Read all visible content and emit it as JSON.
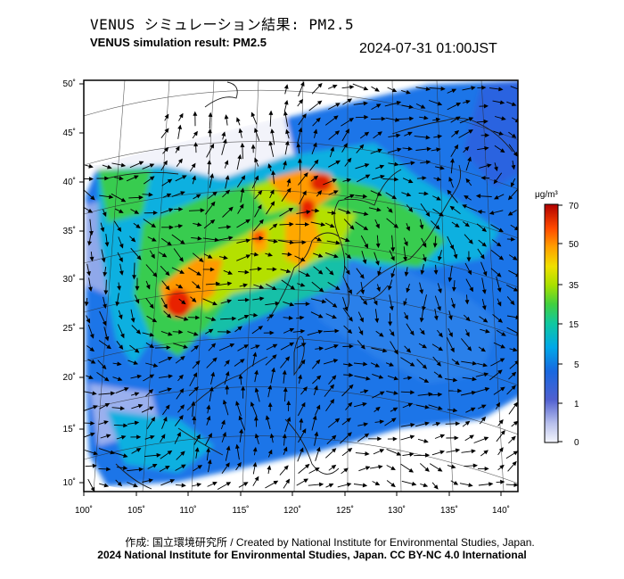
{
  "header": {
    "title_jp": "VENUS シミュレーション結果: PM2.5",
    "title_en": "VENUS simulation result: PM2.5",
    "timestamp": "2024-07-31 01:00JST"
  },
  "map": {
    "longitude_ticks": [
      "100˚",
      "105˚",
      "110˚",
      "115˚",
      "120˚",
      "125˚",
      "130˚",
      "135˚",
      "140˚"
    ],
    "latitude_ticks": [
      "50˚",
      "45˚",
      "40˚",
      "35˚",
      "30˚",
      "25˚",
      "20˚",
      "15˚",
      "10˚"
    ],
    "variable": "PM2.5",
    "has_wind_vectors": true
  },
  "colorbar": {
    "unit": "μg/m³",
    "labels": [
      "70",
      "50",
      "35",
      "15",
      "5",
      "1",
      "0"
    ],
    "colors": [
      "#b40000",
      "#ff3000",
      "#ff9a00",
      "#e8e000",
      "#6cd800",
      "#10c080",
      "#00a8e0",
      "#1070e0",
      "#3a40c8",
      "#8890e0",
      "#e8ecf8"
    ]
  },
  "footer": {
    "credit_line": "作成: 国立環境研究所 / Created by National Institute for Environmental Studies, Japan.",
    "license_line": "2024 National Institute for Environmental Studies, Japan. CC BY-NC 4.0 International"
  }
}
